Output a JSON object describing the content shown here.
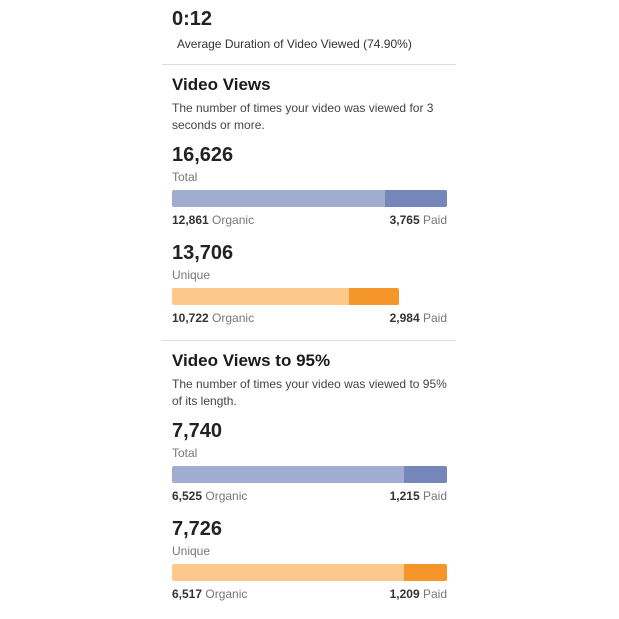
{
  "summary": {
    "value": "0:12",
    "label": "Average Duration of Video Viewed (74.90%)"
  },
  "colors": {
    "blue_organic": "#a0add0",
    "blue_paid": "#7587ba",
    "orange_organic": "#fdc88b",
    "orange_paid": "#f5962a"
  },
  "sections": [
    {
      "title": "Video Views",
      "description": "The number of times your video was viewed for 3 seconds or more.",
      "metrics": [
        {
          "value": "16,626",
          "label": "Total",
          "organic": "12,861",
          "organic_label": "Organic",
          "paid": "3,765",
          "paid_label": "Paid",
          "color": "blue",
          "organic_n": 12861,
          "paid_n": 3765
        },
        {
          "value": "13,706",
          "label": "Unique",
          "organic": "10,722",
          "organic_label": "Organic",
          "paid": "2,984",
          "paid_label": "Paid",
          "color": "orange",
          "organic_n": 10722,
          "paid_n": 2984
        }
      ]
    },
    {
      "title": "Video Views to 95%",
      "description": "The number of times your video was viewed to 95% of its length.",
      "metrics": [
        {
          "value": "7,740",
          "label": "Total",
          "organic": "6,525",
          "organic_label": "Organic",
          "paid": "1,215",
          "paid_label": "Paid",
          "color": "blue",
          "organic_n": 6525,
          "paid_n": 1215
        },
        {
          "value": "7,726",
          "label": "Unique",
          "organic": "6,517",
          "organic_label": "Organic",
          "paid": "1,209",
          "paid_label": "Paid",
          "color": "orange",
          "organic_n": 6517,
          "paid_n": 1209
        }
      ]
    }
  ]
}
